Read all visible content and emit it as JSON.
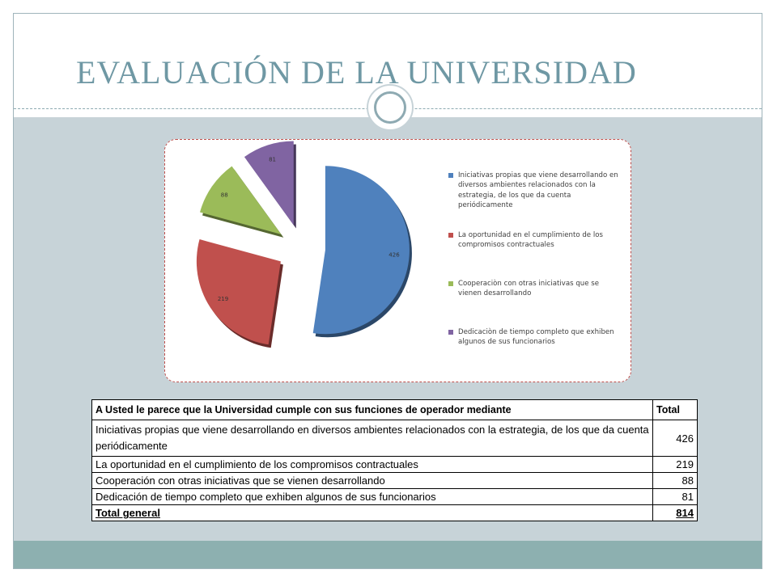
{
  "slide": {
    "title": "EVALUACIÓN DE LA UNIVERSIDAD"
  },
  "chart_data": {
    "type": "pie",
    "title": "",
    "categories": [
      "Iniciativas propias que viene desarrollando en diversos ambientes relacionados con la estrategia, de los que da cuenta periódicamente",
      "La oportunidad en el cumplimiento de los compromisos contractuales",
      "Cooperaciòn con otras iniciativas que se vienen desarrollando",
      "Dedicaciòn de tiempo completo que exhiben algunos de sus funcionarios"
    ],
    "values": [
      426,
      219,
      88,
      81
    ],
    "data_labels": [
      "426",
      "219",
      "88",
      "81"
    ],
    "colors": [
      "#4f81bd",
      "#c0504d",
      "#9bbb59",
      "#8064a2"
    ],
    "exploded": true,
    "legend_position": "right"
  },
  "table": {
    "header": {
      "question": "A Usted le parece que la Universidad cumple con sus funciones de operador mediante",
      "total": "Total"
    },
    "rows": [
      {
        "label": "Iniciativas propias que viene desarrollando en diversos ambientes relacionados con la estrategia, de los que da cuenta periódicamente",
        "value": "426"
      },
      {
        "label": "La oportunidad en el cumplimiento de los compromisos contractuales",
        "value": "219"
      },
      {
        "label": "Cooperación con otras iniciativas que se vienen desarrollando",
        "value": "88"
      },
      {
        "label": "Dedicación de tiempo completo que exhiben algunos de sus funcionarios",
        "value": "81"
      }
    ],
    "total_row": {
      "label": "Total general",
      "value": "814"
    }
  }
}
